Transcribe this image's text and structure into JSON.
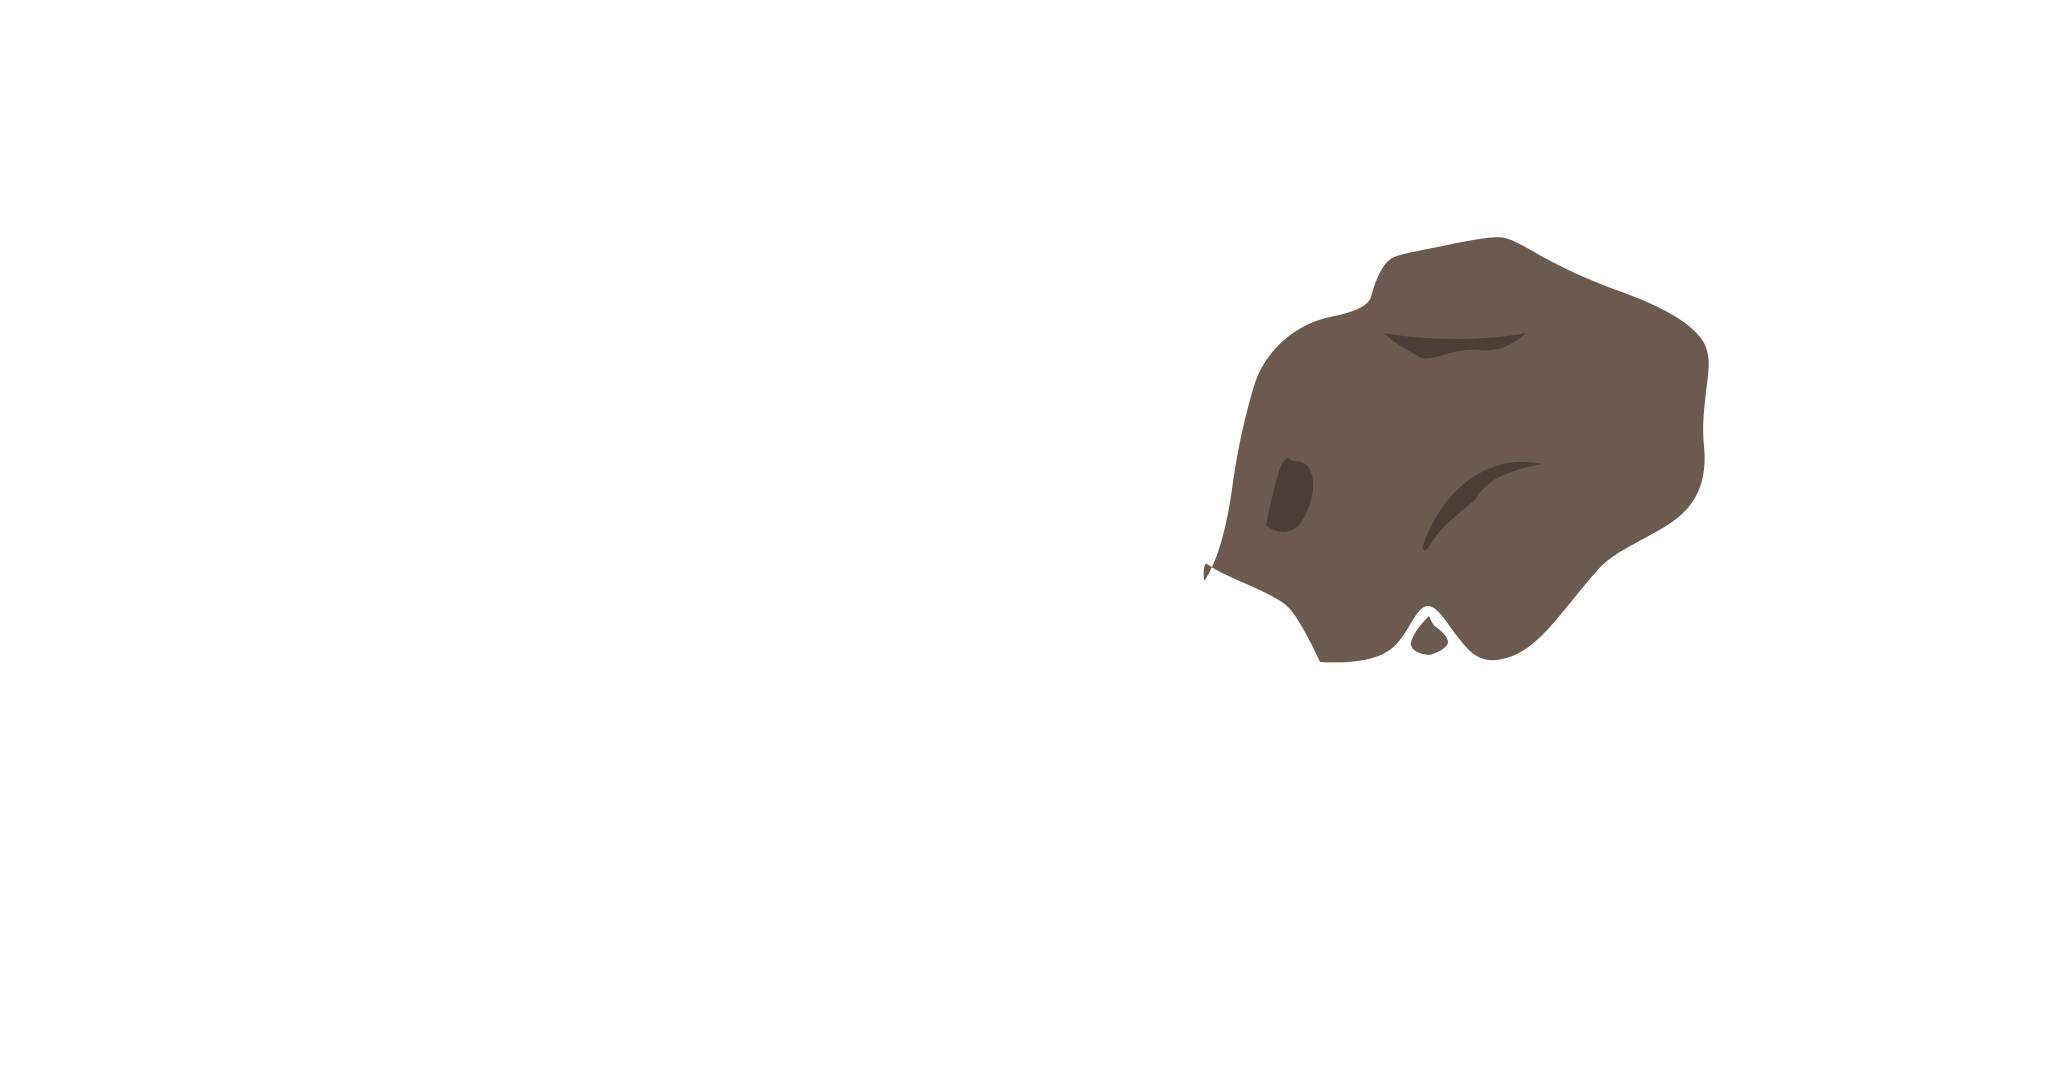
{
  "scene": {
    "background_color": "#ffffff",
    "rock": {
      "icon": "rock-icon",
      "fill_color": "#6b5a4f",
      "shade_color": "#4c3d37"
    }
  }
}
